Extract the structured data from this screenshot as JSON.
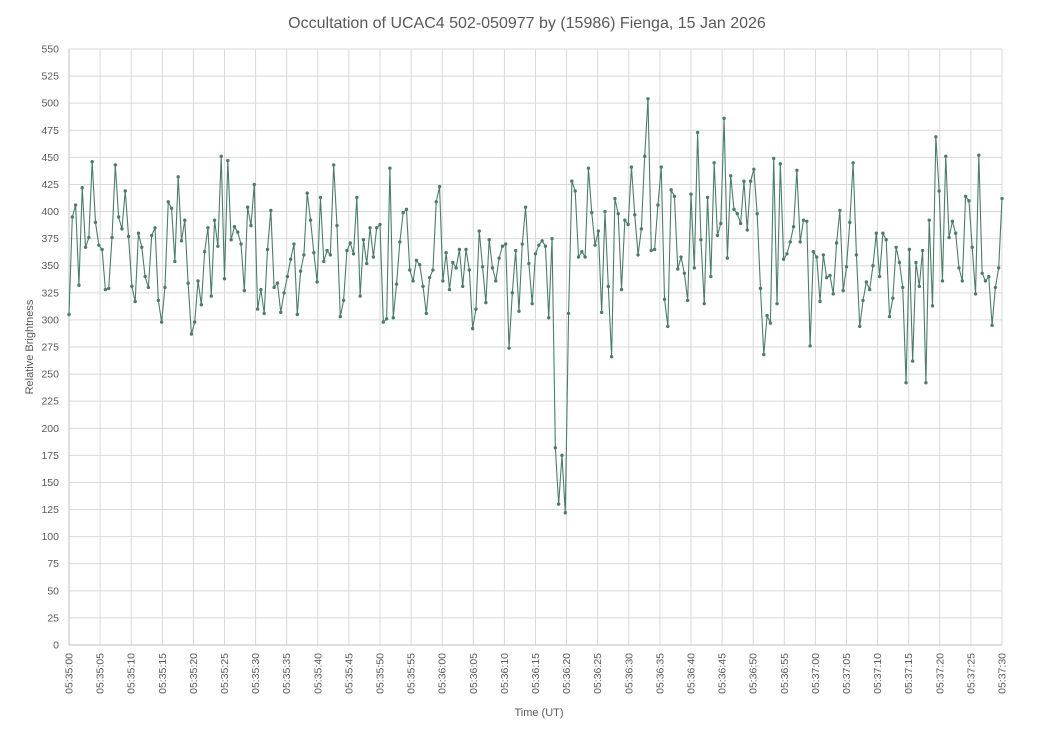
{
  "chart_data": {
    "type": "line",
    "title": "Occultation of UCAC4 502-050977 by (15986) Fienga, 15 Jan 2026",
    "xlabel": "Time (UT)",
    "ylabel": "Relative Brightness",
    "ylim": [
      0,
      550
    ],
    "y_ticks": [
      0,
      25,
      50,
      75,
      100,
      125,
      150,
      175,
      200,
      225,
      250,
      275,
      300,
      325,
      350,
      375,
      400,
      425,
      450,
      475,
      500,
      525,
      550
    ],
    "x_start": "05:35:00",
    "x_end": "05:37:30",
    "x_tick_labels": [
      "05:35:00",
      "05:35:05",
      "05:35:10",
      "05:35:15",
      "05:35:20",
      "05:35:25",
      "05:35:30",
      "05:35:35",
      "05:35:40",
      "05:35:45",
      "05:35:50",
      "05:35:55",
      "05:36:00",
      "05:36:05",
      "05:36:10",
      "05:36:15",
      "05:36:20",
      "05:36:25",
      "05:36:30",
      "05:36:35",
      "05:36:40",
      "05:36:45",
      "05:36:50",
      "05:36:55",
      "05:37:00",
      "05:37:05",
      "05:37:10",
      "05:37:15",
      "05:37:20",
      "05:37:25",
      "05:37:30"
    ],
    "grid": true,
    "legend": "none",
    "line_color": "#4a7e6a",
    "series": [
      {
        "values": [
          305,
          395,
          406,
          332,
          422,
          367,
          376,
          446,
          390,
          369,
          365,
          328,
          329,
          376,
          443,
          395,
          384,
          419,
          377,
          331,
          317,
          380,
          367,
          340,
          330,
          378,
          385,
          318,
          298,
          330,
          409,
          403,
          354,
          432,
          373,
          392,
          334,
          287,
          298,
          336,
          314,
          363,
          385,
          322,
          392,
          368,
          451,
          338,
          447,
          374,
          386,
          381,
          370,
          327,
          404,
          387,
          425,
          310,
          328,
          306,
          365,
          401,
          330,
          334,
          307,
          325,
          340,
          356,
          370,
          305,
          345,
          360,
          417,
          392,
          362,
          335,
          413,
          354,
          364,
          360,
          443,
          387,
          303,
          318,
          364,
          371,
          361,
          413,
          322,
          374,
          352,
          385,
          358,
          385,
          388,
          298,
          301,
          440,
          302,
          333,
          372,
          399,
          402,
          346,
          336,
          355,
          351,
          331,
          306,
          339,
          346,
          409,
          423,
          336,
          362,
          328,
          353,
          348,
          365,
          331,
          365,
          346,
          292,
          310,
          382,
          349,
          316,
          374,
          348,
          336,
          357,
          368,
          370,
          274,
          325,
          364,
          308,
          370,
          404,
          352,
          315,
          361,
          369,
          373,
          368,
          302,
          375,
          182,
          130,
          175,
          122,
          306,
          428,
          419,
          358,
          363,
          358,
          440,
          399,
          369,
          382,
          307,
          400,
          331,
          266,
          412,
          398,
          328,
          392,
          388,
          441,
          397,
          360,
          384,
          451,
          504,
          364,
          365,
          406,
          441,
          319,
          294,
          420,
          414,
          347,
          358,
          343,
          318,
          416,
          348,
          473,
          374,
          315,
          413,
          340,
          445,
          378,
          389,
          486,
          357,
          433,
          402,
          398,
          389,
          428,
          383,
          428,
          439,
          398,
          329,
          268,
          304,
          297,
          449,
          315,
          444,
          356,
          361,
          372,
          386,
          438,
          372,
          392,
          391,
          276,
          363,
          358,
          317,
          360,
          339,
          341,
          324,
          371,
          401,
          327,
          349,
          390,
          445,
          360,
          294,
          318,
          335,
          328,
          350,
          380,
          340,
          380,
          374,
          303,
          320,
          367,
          353,
          330,
          242,
          365,
          262,
          353,
          331,
          364,
          242,
          392,
          313,
          469,
          419,
          336,
          451,
          376,
          391,
          380,
          348,
          336,
          414,
          410,
          367,
          324,
          452,
          343,
          336,
          340,
          295,
          330,
          348,
          412
        ]
      }
    ]
  }
}
